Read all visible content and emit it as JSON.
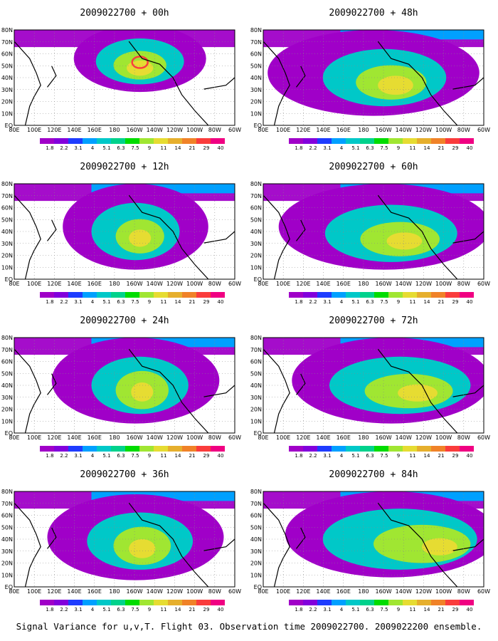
{
  "caption": "Signal Variance for u,v,T. Flight 03. Observation time 2009022700. 2009022200 ensemble.",
  "panels": [
    {
      "title": "2009022700 + 00h"
    },
    {
      "title": "2009022700 + 48h"
    },
    {
      "title": "2009022700 + 12h"
    },
    {
      "title": "2009022700 + 60h"
    },
    {
      "title": "2009022700 + 24h"
    },
    {
      "title": "2009022700 + 72h"
    },
    {
      "title": "2009022700 + 36h"
    },
    {
      "title": "2009022700 + 84h"
    }
  ],
  "chart_data": {
    "type": "heatmap",
    "lon_ticks": [
      "80E",
      "100E",
      "120E",
      "140E",
      "160E",
      "180",
      "160W",
      "140W",
      "120W",
      "100W",
      "80W",
      "60W"
    ],
    "lat_ticks": [
      "EQ",
      "10N",
      "20N",
      "30N",
      "40N",
      "50N",
      "60N",
      "70N",
      "80N"
    ],
    "xlim": [
      "80E",
      "60W"
    ],
    "ylim": [
      "EQ",
      "80N"
    ],
    "grid": true,
    "colorbar": {
      "levels": [
        "1.8",
        "2.2",
        "3.1",
        "4",
        "5.1",
        "6.3",
        "7.5",
        "9",
        "11",
        "14",
        "21",
        "29",
        "40"
      ],
      "colors": [
        "#a000c8",
        "#8200dc",
        "#1e3cff",
        "#00a0ff",
        "#00c8c8",
        "#00d28c",
        "#00dc00",
        "#a0e632",
        "#e6dc32",
        "#e6af2d",
        "#f08228",
        "#fa3c3c",
        "#f00082"
      ]
    },
    "fields": [
      {
        "lead": "00h",
        "max_region": "160W 50N"
      },
      {
        "lead": "48h",
        "max_region": "140W 40N"
      },
      {
        "lead": "12h",
        "max_region": "150W 45N"
      },
      {
        "lead": "60h",
        "max_region": "140W 38N"
      },
      {
        "lead": "24h",
        "max_region": "150W 43N"
      },
      {
        "lead": "72h",
        "max_region": "120W 38N"
      },
      {
        "lead": "36h",
        "max_region": "150W 40N"
      },
      {
        "lead": "84h",
        "max_region": "100W 35N"
      }
    ]
  }
}
